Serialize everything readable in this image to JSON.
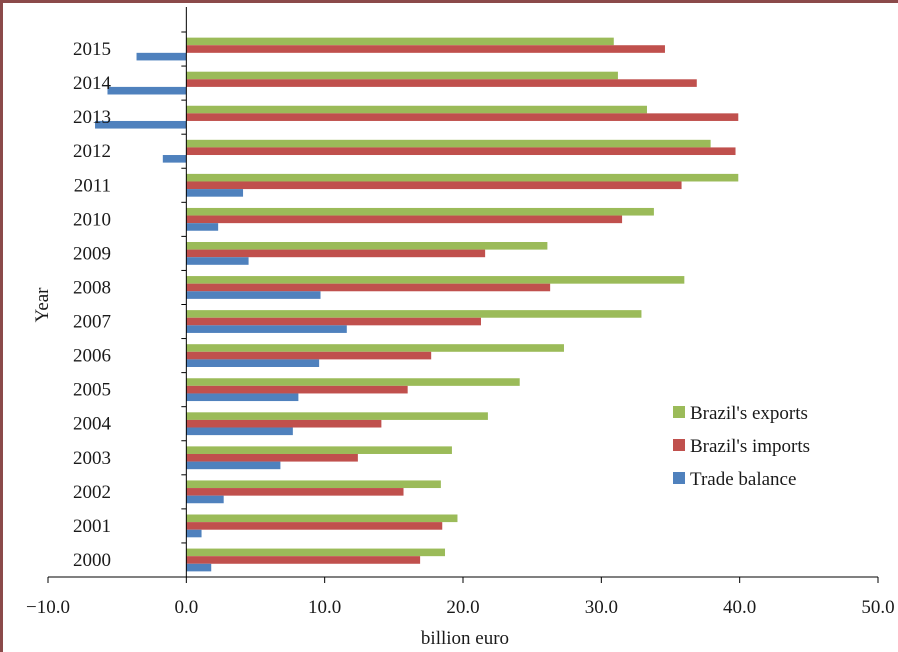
{
  "chart_data": {
    "type": "bar",
    "orientation": "horizontal",
    "categories": [
      "2000",
      "2001",
      "2002",
      "2003",
      "2004",
      "2005",
      "2006",
      "2007",
      "2008",
      "2009",
      "2010",
      "2011",
      "2012",
      "2013",
      "2014",
      "2015"
    ],
    "series": [
      {
        "name": "Brazil's exports",
        "color": "#9bbb59",
        "values": [
          18.7,
          19.6,
          18.4,
          19.2,
          21.8,
          24.1,
          27.3,
          32.9,
          36.0,
          26.1,
          33.8,
          39.9,
          37.9,
          33.3,
          31.2,
          30.9
        ]
      },
      {
        "name": "Brazil's imports",
        "color": "#c0504d",
        "values": [
          16.9,
          18.5,
          15.7,
          12.4,
          14.1,
          16.0,
          17.7,
          21.3,
          26.3,
          21.6,
          31.5,
          35.8,
          39.7,
          39.9,
          36.9,
          34.6
        ]
      },
      {
        "name": "Trade balance",
        "color": "#4f81bd",
        "values": [
          1.8,
          1.1,
          2.7,
          6.8,
          7.7,
          8.1,
          9.6,
          11.6,
          9.7,
          4.5,
          2.3,
          4.1,
          -1.7,
          -6.6,
          -5.7,
          -3.6
        ]
      }
    ],
    "xlabel": "billion euro",
    "ylabel": "Year",
    "xlim": [
      -10,
      50
    ],
    "x_ticks": [
      "−10.0",
      "0.0",
      "10.0",
      "20.0",
      "30.0",
      "40.0",
      "50.0"
    ],
    "x_tick_values": [
      -10,
      0,
      10,
      20,
      30,
      40,
      50
    ],
    "grid": false,
    "legend_position": "right"
  }
}
